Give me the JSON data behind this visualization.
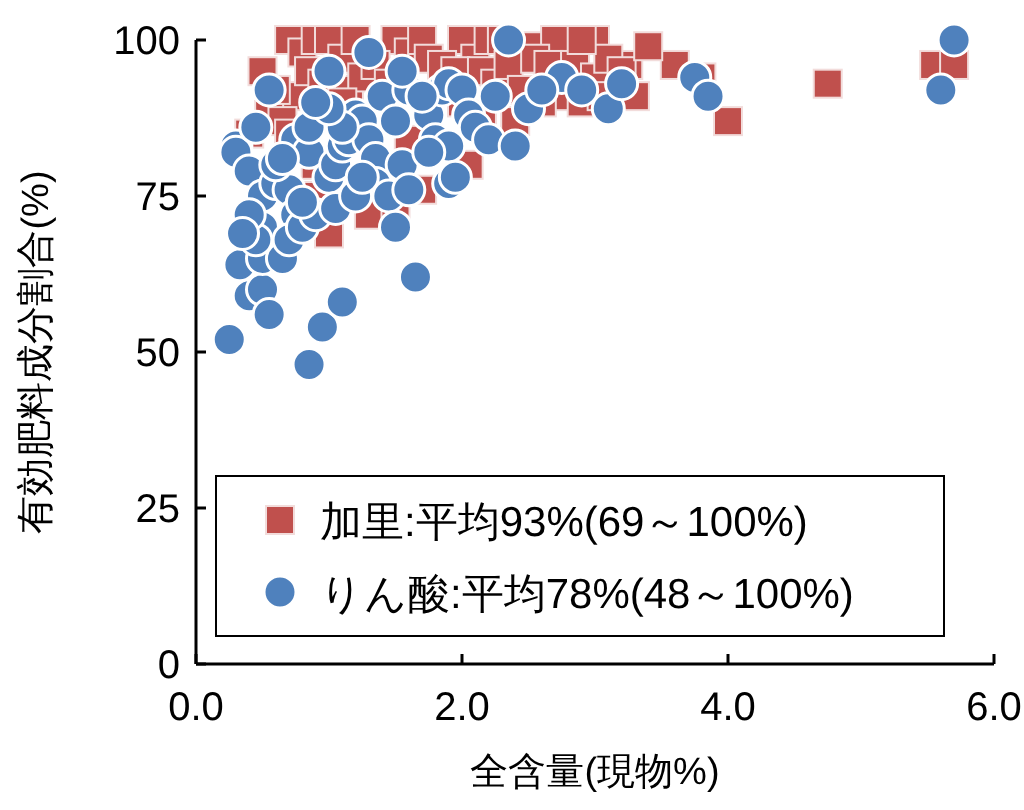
{
  "chart_data": {
    "type": "scatter",
    "xlabel": "全含量(現物%)",
    "ylabel": "有効肥料成分割合(%)",
    "xlim": [
      0,
      6
    ],
    "ylim": [
      0,
      100
    ],
    "xticks": [
      {
        "value": 0,
        "label": "0.0"
      },
      {
        "value": 2,
        "label": "2.0"
      },
      {
        "value": 4,
        "label": "4.0"
      },
      {
        "value": 6,
        "label": "6.0"
      }
    ],
    "yticks": [
      0,
      25,
      50,
      75,
      100
    ],
    "legend": "bottom right",
    "grid": false,
    "series": [
      {
        "name": "加里:平均93%(69～100%)",
        "color": "#c0504d",
        "marker": "square",
        "x": [
          0.7,
          0.8,
          0.9,
          1.0,
          1.1,
          1.2,
          1.5,
          1.6,
          1.7,
          2.0,
          2.1,
          2.2,
          2.3,
          2.5,
          2.7,
          3.0,
          3.25,
          3.6,
          3.8,
          4.0,
          4.75,
          5.55,
          5.7,
          0.75,
          0.85,
          0.95,
          1.15,
          1.25,
          1.35,
          1.45,
          1.75,
          1.85,
          1.95,
          2.15,
          2.25,
          2.35,
          2.45,
          2.55,
          2.65,
          2.75,
          2.85,
          3.0,
          3.1,
          3.3,
          0.4,
          0.55,
          0.65,
          0.7,
          1.1,
          2.0,
          2.6,
          2.9,
          3.05,
          0.9,
          1.6,
          1.7,
          2.05,
          1.3,
          1.5,
          0.5,
          0.6,
          2.4,
          2.15,
          3.2,
          2.9,
          3.4,
          1.0,
          0.9
        ],
        "values": [
          100,
          98,
          100,
          100,
          97,
          100,
          100,
          98,
          100,
          100,
          97,
          100,
          100,
          99,
          100,
          100,
          96,
          96,
          94,
          87,
          93,
          96,
          96,
          91,
          95,
          93,
          92,
          94,
          96,
          93,
          97,
          96,
          95,
          95,
          93,
          96,
          92,
          97,
          96,
          91,
          96,
          94,
          97,
          91,
          85,
          88,
          87,
          85,
          90,
          90,
          90,
          90,
          91,
          80,
          84,
          76,
          80,
          72,
          73,
          95,
          92,
          87,
          88,
          95,
          100,
          99,
          69,
          75
        ]
      },
      {
        "name": "りん酸:平均78%(48～100%)",
        "color": "#4f81bd",
        "marker": "circle",
        "x": [
          0.25,
          0.4,
          0.5,
          0.55,
          0.33,
          0.5,
          0.65,
          0.85,
          0.95,
          1.1,
          0.3,
          0.3,
          0.45,
          0.4,
          0.5,
          0.6,
          0.5,
          0.45,
          0.7,
          0.75,
          0.7,
          0.8,
          0.9,
          1.0,
          1.05,
          0.8,
          0.6,
          0.75,
          0.85,
          0.65,
          0.55,
          1.0,
          1.05,
          1.1,
          1.15,
          1.2,
          1.25,
          1.3,
          1.35,
          1.4,
          1.5,
          1.55,
          1.6,
          1.75,
          1.8,
          1.85,
          1.9,
          2.0,
          2.05,
          1.9,
          2.1,
          2.2,
          1.35,
          1.45,
          1.5,
          1.65,
          1.6,
          1.75,
          1.9,
          1.95,
          1.2,
          1.25,
          0.85,
          1.3,
          1.7,
          2.25,
          2.5,
          2.4,
          2.35,
          2.75,
          2.9,
          3.1,
          3.2,
          3.75,
          3.85,
          5.6,
          5.7,
          1.55,
          2.6,
          1.1,
          1.0,
          0.4,
          0.35,
          0.9
        ],
        "values": [
          52,
          59,
          60,
          56,
          64,
          65,
          65,
          48,
          54,
          58,
          83,
          82,
          86,
          79,
          75,
          77,
          70,
          68,
          76,
          72,
          68,
          70,
          72,
          78,
          73,
          74,
          80,
          84,
          82,
          81,
          92,
          95,
          80,
          83,
          84,
          88,
          87,
          84,
          81,
          91,
          87,
          80,
          92,
          88,
          84,
          92,
          93,
          92,
          88,
          83,
          86,
          84,
          77,
          75,
          70,
          62,
          76,
          82,
          77,
          78,
          75,
          78,
          86,
          98,
          91,
          91,
          89,
          83,
          100,
          94,
          92,
          89,
          93,
          94,
          91,
          92,
          100,
          95,
          92,
          86,
          89,
          72,
          69,
          90
        ]
      }
    ]
  }
}
